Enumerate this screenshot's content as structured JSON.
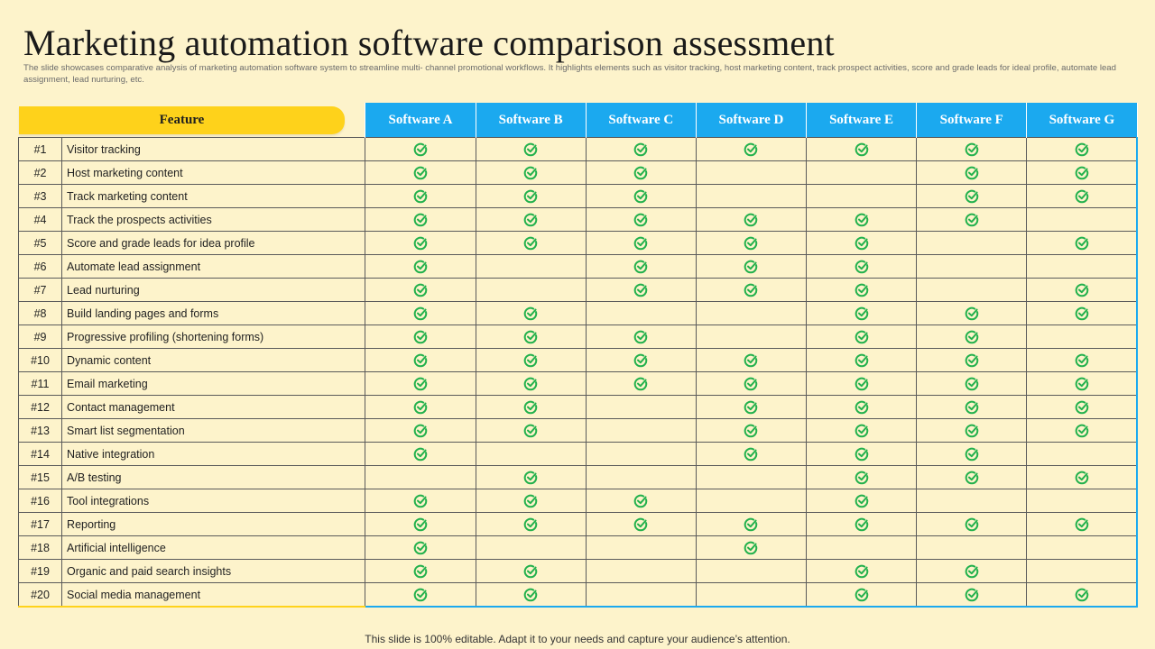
{
  "title": "Marketing automation software comparison assessment",
  "subtitle": "The slide showcases comparative analysis of marketing automation  software system to streamline multi- channel promotional workflows. It highlights elements such as visitor tracking, host marketing content, track prospect activities, score and grade leads for ideal profile, automate lead assignment, lead nurturing, etc.",
  "table": {
    "feature_header": "Feature",
    "software": [
      "Software A",
      "Software B",
      "Software C",
      "Software D",
      "Software E",
      "Software F",
      "Software G"
    ],
    "rows": [
      {
        "num": "#1",
        "feature": "Visitor tracking",
        "checks": [
          1,
          1,
          1,
          1,
          1,
          1,
          1
        ]
      },
      {
        "num": "#2",
        "feature": "Host marketing content",
        "checks": [
          1,
          1,
          1,
          0,
          0,
          1,
          1
        ]
      },
      {
        "num": "#3",
        "feature": "Track marketing content",
        "checks": [
          1,
          1,
          1,
          0,
          0,
          1,
          1
        ]
      },
      {
        "num": "#4",
        "feature": "Track the prospects activities",
        "checks": [
          1,
          1,
          1,
          1,
          1,
          1,
          0
        ]
      },
      {
        "num": "#5",
        "feature": "Score and grade leads for idea profile",
        "checks": [
          1,
          1,
          1,
          1,
          1,
          0,
          1
        ]
      },
      {
        "num": "#6",
        "feature": "Automate lead assignment",
        "checks": [
          1,
          0,
          1,
          1,
          1,
          0,
          0
        ]
      },
      {
        "num": "#7",
        "feature": "Lead nurturing",
        "checks": [
          1,
          0,
          1,
          1,
          1,
          0,
          1
        ]
      },
      {
        "num": "#8",
        "feature": "Build landing pages and forms",
        "checks": [
          1,
          1,
          0,
          0,
          1,
          1,
          1
        ]
      },
      {
        "num": "#9",
        "feature": "Progressive profiling (shortening forms)",
        "checks": [
          1,
          1,
          1,
          0,
          1,
          1,
          0
        ]
      },
      {
        "num": "#10",
        "feature": "Dynamic content",
        "checks": [
          1,
          1,
          1,
          1,
          1,
          1,
          1
        ]
      },
      {
        "num": "#11",
        "feature": "Email marketing",
        "checks": [
          1,
          1,
          1,
          1,
          1,
          1,
          1
        ]
      },
      {
        "num": "#12",
        "feature": "Contact management",
        "checks": [
          1,
          1,
          0,
          1,
          1,
          1,
          1
        ]
      },
      {
        "num": "#13",
        "feature": "Smart list segmentation",
        "checks": [
          1,
          1,
          0,
          1,
          1,
          1,
          1
        ]
      },
      {
        "num": "#14",
        "feature": "Native integration",
        "checks": [
          1,
          0,
          0,
          1,
          1,
          1,
          0
        ]
      },
      {
        "num": "#15",
        "feature": "A/B testing",
        "checks": [
          0,
          1,
          0,
          0,
          1,
          1,
          1
        ]
      },
      {
        "num": "#16",
        "feature": "Tool integrations",
        "checks": [
          1,
          1,
          1,
          0,
          1,
          0,
          0
        ]
      },
      {
        "num": "#17",
        "feature": "Reporting",
        "checks": [
          1,
          1,
          1,
          1,
          1,
          1,
          1
        ]
      },
      {
        "num": "#18",
        "feature": "Artificial intelligence",
        "checks": [
          1,
          0,
          0,
          1,
          0,
          0,
          0
        ]
      },
      {
        "num": "#19",
        "feature": "Organic and paid search insights",
        "checks": [
          1,
          1,
          0,
          0,
          1,
          1,
          0
        ]
      },
      {
        "num": "#20",
        "feature": "Social media management",
        "checks": [
          1,
          1,
          0,
          0,
          1,
          1,
          1
        ]
      }
    ]
  },
  "check_icon": "check-circle-icon",
  "colors": {
    "background": "#fdf3cb",
    "feature_header": "#fed21b",
    "software_header": "#1ba9ef",
    "check": "#22b14c"
  },
  "footer": "This slide is 100% editable. Adapt it to your needs and capture your audience’s attention."
}
